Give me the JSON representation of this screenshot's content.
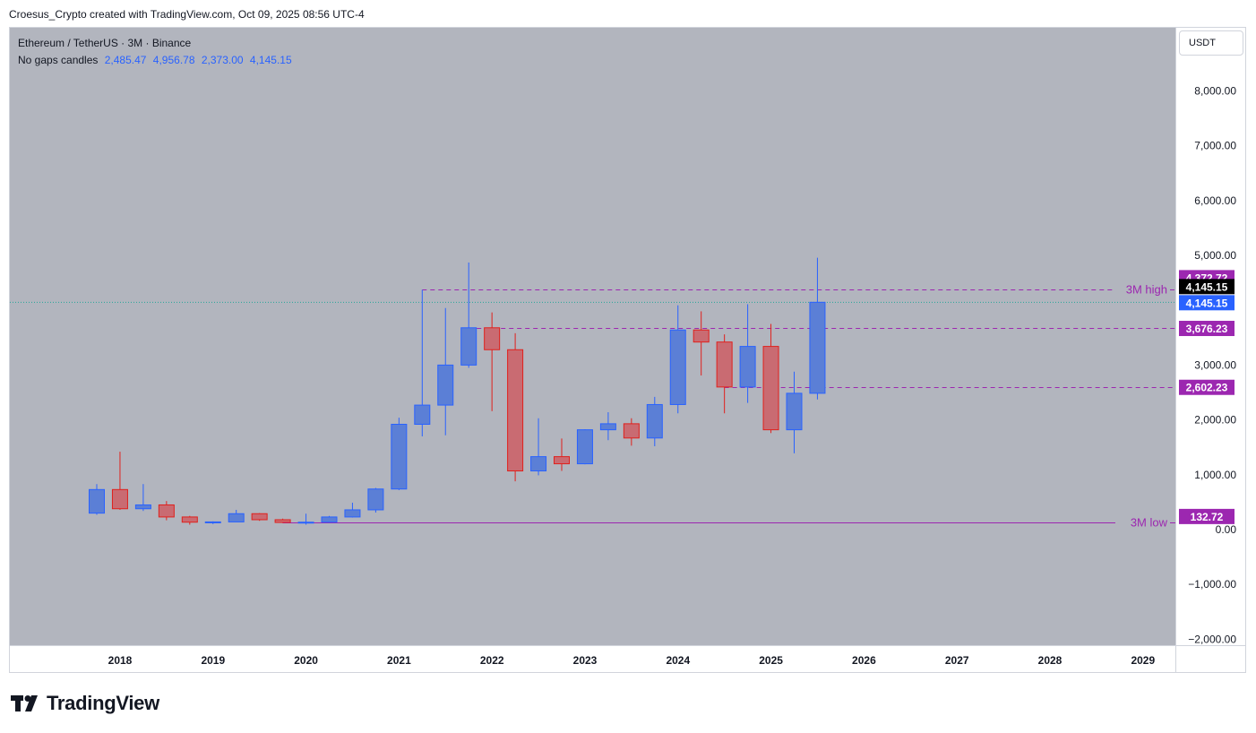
{
  "caption": "Croesus_Crypto created with TradingView.com, Oct 09, 2025 08:56 UTC-4",
  "legend": {
    "title": "Ethereum / TetherUS · 3M · Binance",
    "line2_label": "No gaps candles",
    "ohlc": [
      "2,485.47",
      "4,956.78",
      "2,373.00",
      "4,145.15"
    ]
  },
  "currency_button": "USDT",
  "brand": {
    "name": "TradingView"
  },
  "colors": {
    "background": "#b2b5be",
    "up": "#5b7fd6",
    "up_border": "#2962ff",
    "down": "#c96b72",
    "down_border": "#e0201c",
    "level_line": "#9c27b0",
    "price_dotted": "#26a69a"
  },
  "chart_data": {
    "type": "candlestick",
    "symbol": "Ethereum / TetherUS",
    "interval": "3M",
    "exchange": "Binance",
    "y_axis": {
      "range": [
        -2000,
        9000
      ],
      "ticks": [
        8000,
        7000,
        6000,
        5000,
        3000,
        2000,
        1000,
        0,
        -1000,
        -2000
      ],
      "tick_labels": [
        "8,000.00",
        "7,000.00",
        "6,000.00",
        "5,000.00",
        "3,000.00",
        "2,000.00",
        "1,000.00",
        "0.00",
        "−1,000.00",
        "−2,000.00"
      ]
    },
    "x_axis": {
      "ticks": [
        "2018",
        "2019",
        "2020",
        "2021",
        "2022",
        "2023",
        "2024",
        "2025",
        "2026",
        "2027",
        "2028",
        "2029"
      ]
    },
    "candles": [
      {
        "period": "2017-Q4",
        "open": 300,
        "high": 830,
        "low": 270,
        "close": 730
      },
      {
        "period": "2018-Q1",
        "open": 730,
        "high": 1420,
        "low": 360,
        "close": 380
      },
      {
        "period": "2018-Q2",
        "open": 380,
        "high": 830,
        "low": 340,
        "close": 450
      },
      {
        "period": "2018-Q3",
        "open": 450,
        "high": 520,
        "low": 170,
        "close": 230
      },
      {
        "period": "2018-Q4",
        "open": 230,
        "high": 250,
        "low": 90,
        "close": 135
      },
      {
        "period": "2019-Q1",
        "open": 135,
        "high": 150,
        "low": 100,
        "close": 140
      },
      {
        "period": "2019-Q2",
        "open": 140,
        "high": 360,
        "low": 140,
        "close": 290
      },
      {
        "period": "2019-Q3",
        "open": 290,
        "high": 300,
        "low": 160,
        "close": 180
      },
      {
        "period": "2019-Q4",
        "open": 180,
        "high": 200,
        "low": 120,
        "close": 130
      },
      {
        "period": "2020-Q1",
        "open": 130,
        "high": 290,
        "low": 90,
        "close": 135
      },
      {
        "period": "2020-Q2",
        "open": 135,
        "high": 250,
        "low": 130,
        "close": 230
      },
      {
        "period": "2020-Q3",
        "open": 230,
        "high": 490,
        "low": 220,
        "close": 360
      },
      {
        "period": "2020-Q4",
        "open": 360,
        "high": 760,
        "low": 310,
        "close": 740
      },
      {
        "period": "2021-Q1",
        "open": 740,
        "high": 2040,
        "low": 720,
        "close": 1920
      },
      {
        "period": "2021-Q2",
        "open": 1920,
        "high": 4372.72,
        "low": 1700,
        "close": 2270
      },
      {
        "period": "2021-Q3",
        "open": 2270,
        "high": 4040,
        "low": 1720,
        "close": 3000
      },
      {
        "period": "2021-Q4",
        "open": 3000,
        "high": 4870,
        "low": 2950,
        "close": 3680
      },
      {
        "period": "2022-Q1",
        "open": 3680,
        "high": 3960,
        "low": 2160,
        "close": 3280
      },
      {
        "period": "2022-Q2",
        "open": 3280,
        "high": 3580,
        "low": 880,
        "close": 1070
      },
      {
        "period": "2022-Q3",
        "open": 1070,
        "high": 2030,
        "low": 990,
        "close": 1330
      },
      {
        "period": "2022-Q4",
        "open": 1330,
        "high": 1660,
        "low": 1070,
        "close": 1200
      },
      {
        "period": "2023-Q1",
        "open": 1200,
        "high": 1830,
        "low": 1190,
        "close": 1820
      },
      {
        "period": "2023-Q2",
        "open": 1820,
        "high": 2140,
        "low": 1630,
        "close": 1930
      },
      {
        "period": "2023-Q3",
        "open": 1930,
        "high": 2030,
        "low": 1530,
        "close": 1670
      },
      {
        "period": "2023-Q4",
        "open": 1670,
        "high": 2420,
        "low": 1520,
        "close": 2280
      },
      {
        "period": "2024-Q1",
        "open": 2280,
        "high": 4090,
        "low": 2120,
        "close": 3640
      },
      {
        "period": "2024-Q2",
        "open": 3640,
        "high": 3980,
        "low": 2810,
        "close": 3420
      },
      {
        "period": "2024-Q3",
        "open": 3420,
        "high": 3560,
        "low": 2120,
        "close": 2600
      },
      {
        "period": "2024-Q4",
        "open": 2600,
        "high": 4110,
        "low": 2310,
        "close": 3340
      },
      {
        "period": "2025-Q1",
        "open": 3340,
        "high": 3750,
        "low": 1760,
        "close": 1820
      },
      {
        "period": "2025-Q2",
        "open": 1820,
        "high": 2880,
        "low": 1390,
        "close": 2485.47
      },
      {
        "period": "2025-Q3",
        "open": 2485.47,
        "high": 4956.78,
        "low": 2373.0,
        "close": 4145.15
      }
    ],
    "levels": [
      {
        "label": "3M high",
        "value": 4372.72,
        "value_label": "4,372.72",
        "start": "2021-Q2"
      },
      {
        "label": "",
        "value": 3676.23,
        "value_label": "3,676.23",
        "start": "2021-Q4"
      },
      {
        "label": "",
        "value": 2602.23,
        "value_label": "2,602.23",
        "start": "2024-Q3"
      },
      {
        "label": "3M low",
        "value": 132.72,
        "value_label": "132.72",
        "start": "2019-Q4"
      }
    ],
    "last_price": {
      "value": 4145.15,
      "label": "4,145.15"
    }
  }
}
